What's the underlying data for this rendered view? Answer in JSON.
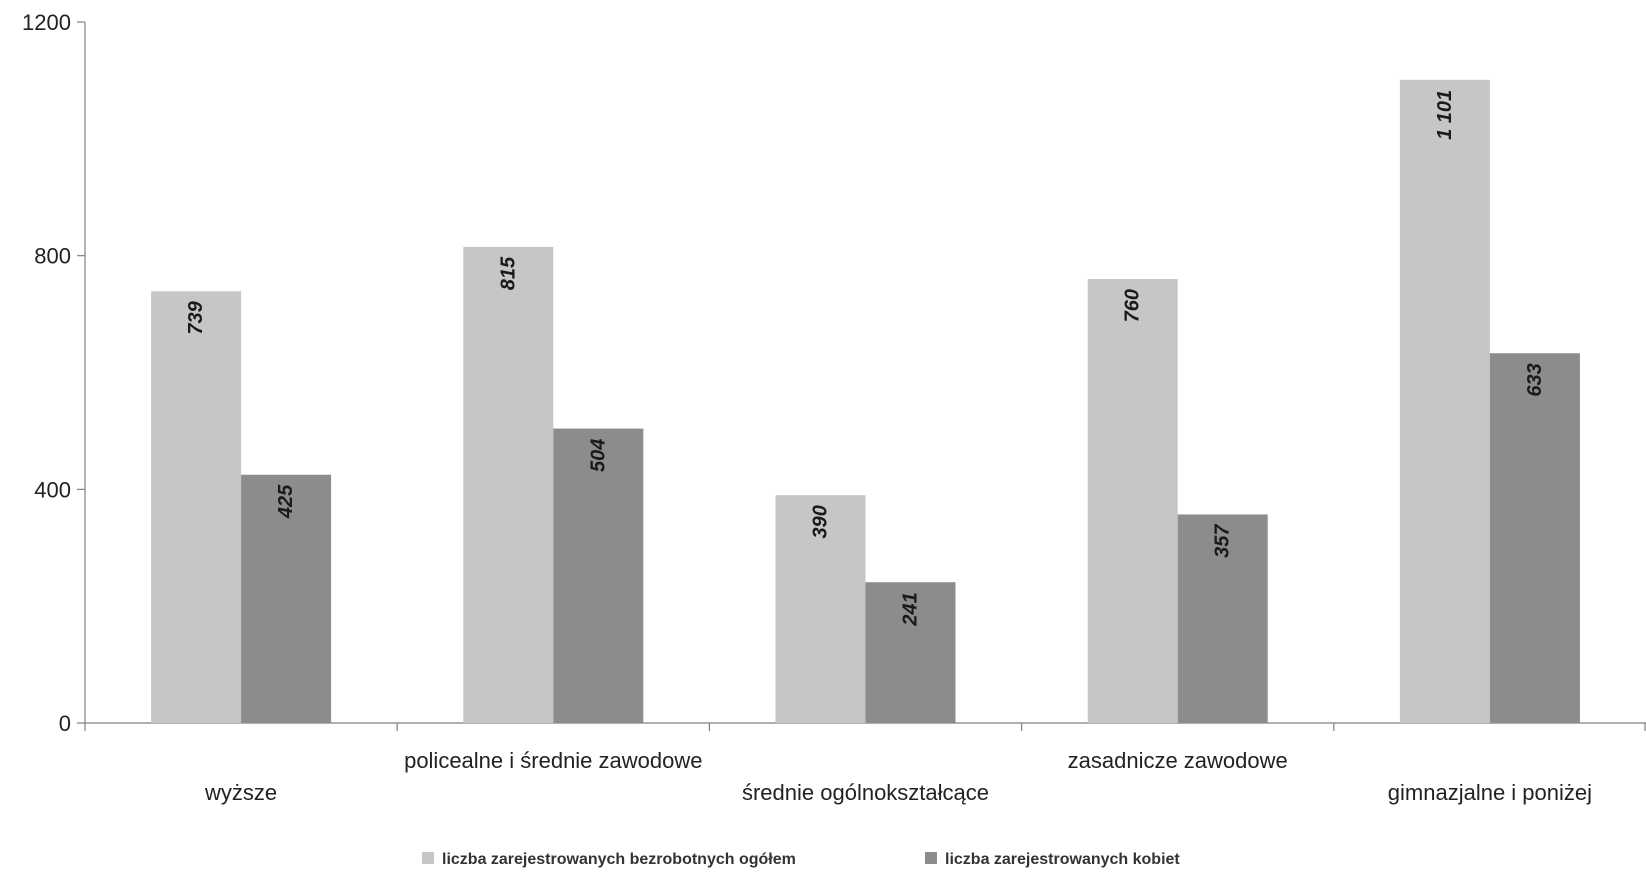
{
  "chart_data": {
    "type": "bar",
    "categories": [
      "wyższe",
      "policealne i średnie zawodowe",
      "średnie ogólnokształcące",
      "zasadnicze zawodowe",
      "gimnazjalne i poniżej"
    ],
    "series": [
      {
        "name": "liczba zarejestrowanych bezrobotnych ogółem",
        "values": [
          739,
          815,
          390,
          760,
          1101
        ],
        "labels": [
          "739",
          "815",
          "390",
          "760",
          "1 101"
        ],
        "color": "#c6c6c6"
      },
      {
        "name": "liczba zarejestrowanych kobiet",
        "values": [
          425,
          504,
          241,
          357,
          633
        ],
        "labels": [
          "425",
          "504",
          "241",
          "357",
          "633"
        ],
        "color": "#8c8c8c"
      }
    ],
    "yticks": [
      "0",
      "400",
      "800",
      "1200"
    ],
    "ylim": [
      0,
      1200
    ],
    "grid": false,
    "legend_position": "bottom",
    "category_label_rows": [
      "lower",
      "upper",
      "lower",
      "upper",
      "lower"
    ]
  }
}
